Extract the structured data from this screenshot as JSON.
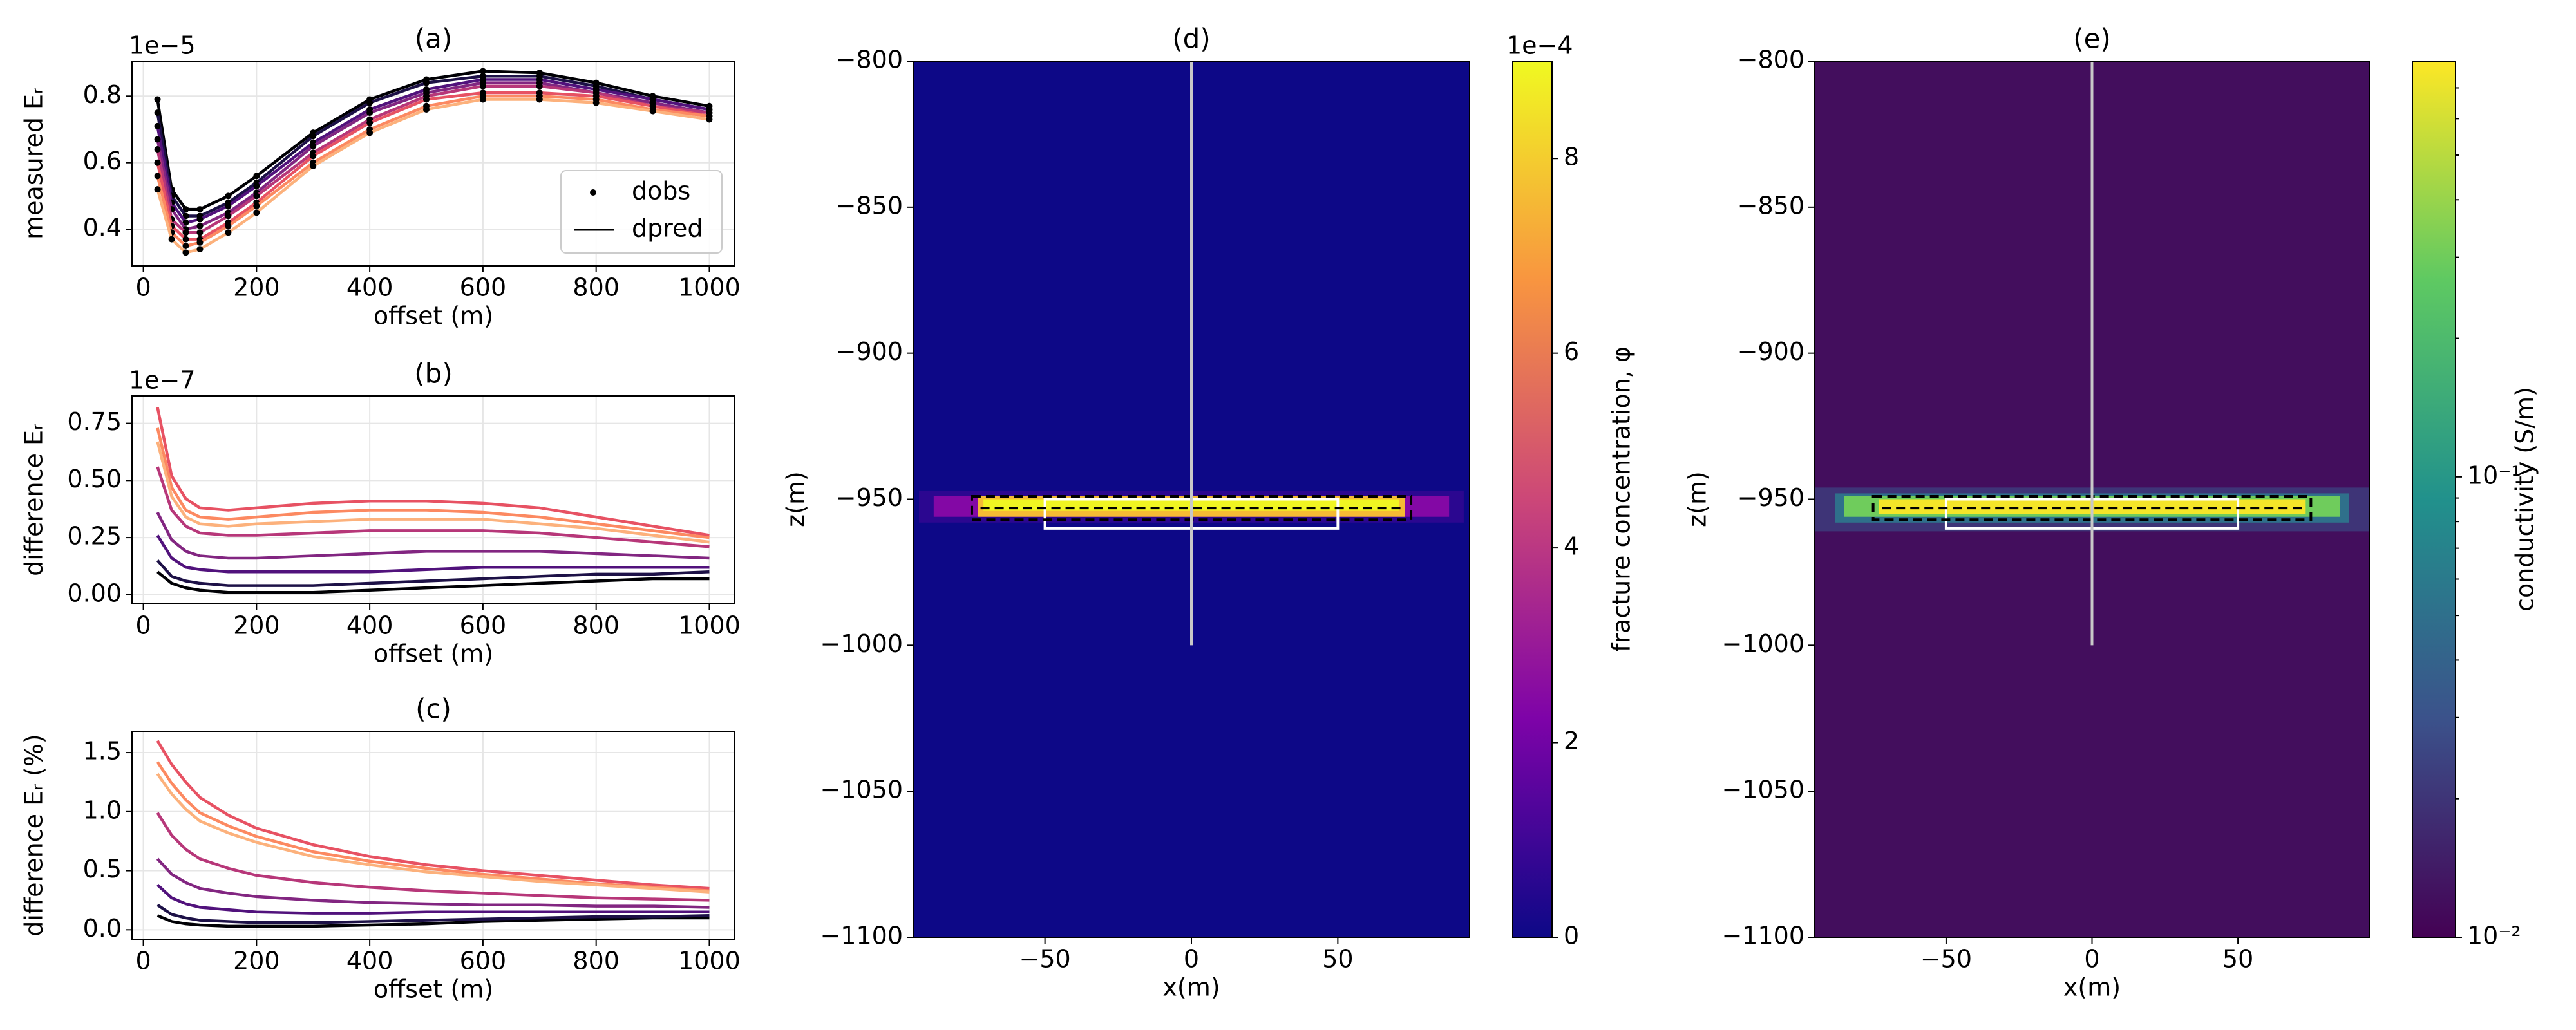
{
  "chart_data": [
    {
      "type": "line",
      "title": "(a)",
      "xlabel": "offset (m)",
      "ylabel": "measured Eᵣ",
      "offset_text": "1e−5",
      "x": [
        25,
        50,
        75,
        100,
        150,
        200,
        300,
        400,
        500,
        600,
        700,
        800,
        900,
        1000
      ],
      "xlim": [
        -20,
        1045
      ],
      "xticks": [
        0,
        200,
        400,
        600,
        800,
        1000
      ],
      "ylim": [
        0.29,
        0.905
      ],
      "yticks": [
        0.4,
        0.6,
        0.8
      ],
      "grid": true,
      "markers": true,
      "legend": {
        "loc": "lower right",
        "entries": [
          {
            "label": "dobs",
            "marker": "dot"
          },
          {
            "label": "dpred",
            "marker": "line"
          }
        ]
      },
      "series": [
        {
          "color": "#000004",
          "values": [
            0.79,
            0.52,
            0.46,
            0.46,
            0.5,
            0.56,
            0.69,
            0.79,
            0.85,
            0.875,
            0.87,
            0.84,
            0.8,
            0.77
          ]
        },
        {
          "color": "#1d1147",
          "values": [
            0.75,
            0.5,
            0.44,
            0.44,
            0.48,
            0.54,
            0.68,
            0.78,
            0.84,
            0.86,
            0.86,
            0.83,
            0.79,
            0.76
          ]
        },
        {
          "color": "#51127c",
          "values": [
            0.71,
            0.48,
            0.42,
            0.43,
            0.47,
            0.53,
            0.66,
            0.76,
            0.82,
            0.85,
            0.85,
            0.82,
            0.79,
            0.76
          ]
        },
        {
          "color": "#822681",
          "values": [
            0.67,
            0.46,
            0.4,
            0.41,
            0.45,
            0.51,
            0.65,
            0.75,
            0.81,
            0.84,
            0.84,
            0.81,
            0.78,
            0.75
          ]
        },
        {
          "color": "#b73779",
          "values": [
            0.64,
            0.43,
            0.39,
            0.39,
            0.44,
            0.5,
            0.63,
            0.73,
            0.8,
            0.83,
            0.83,
            0.81,
            0.77,
            0.75
          ]
        },
        {
          "color": "#e75263",
          "values": [
            0.6,
            0.41,
            0.37,
            0.37,
            0.42,
            0.48,
            0.62,
            0.72,
            0.79,
            0.81,
            0.81,
            0.8,
            0.77,
            0.74
          ]
        },
        {
          "color": "#fc8961",
          "values": [
            0.56,
            0.39,
            0.35,
            0.36,
            0.41,
            0.47,
            0.6,
            0.7,
            0.77,
            0.8,
            0.8,
            0.79,
            0.76,
            0.74
          ]
        },
        {
          "color": "#fcb17c",
          "values": [
            0.52,
            0.37,
            0.33,
            0.34,
            0.39,
            0.45,
            0.59,
            0.69,
            0.76,
            0.79,
            0.79,
            0.78,
            0.755,
            0.73
          ]
        }
      ]
    },
    {
      "type": "line",
      "title": "(b)",
      "xlabel": "offset (m)",
      "ylabel": "difference Eᵣ",
      "offset_text": "1e−7",
      "x": [
        25,
        50,
        75,
        100,
        150,
        200,
        300,
        400,
        500,
        600,
        700,
        800,
        900,
        1000
      ],
      "xlim": [
        -20,
        1045
      ],
      "xticks": [
        0,
        200,
        400,
        600,
        800,
        1000
      ],
      "ylim": [
        -0.04,
        0.87
      ],
      "yticks": [
        {
          "value": 0,
          "label": "0.00"
        },
        {
          "value": 0.25,
          "label": "0.25"
        },
        {
          "value": 0.5,
          "label": "0.50"
        },
        {
          "value": 0.75,
          "label": "0.75"
        }
      ],
      "grid": true,
      "series": [
        {
          "color": "#000004",
          "values": [
            0.1,
            0.05,
            0.03,
            0.02,
            0.01,
            0.01,
            0.01,
            0.02,
            0.03,
            0.04,
            0.05,
            0.06,
            0.07,
            0.07
          ]
        },
        {
          "color": "#1d1147",
          "values": [
            0.15,
            0.08,
            0.06,
            0.05,
            0.04,
            0.04,
            0.04,
            0.05,
            0.06,
            0.07,
            0.08,
            0.09,
            0.09,
            0.1
          ]
        },
        {
          "color": "#51127c",
          "values": [
            0.26,
            0.16,
            0.12,
            0.11,
            0.1,
            0.1,
            0.1,
            0.1,
            0.11,
            0.12,
            0.12,
            0.12,
            0.12,
            0.12
          ]
        },
        {
          "color": "#822681",
          "values": [
            0.36,
            0.24,
            0.19,
            0.17,
            0.16,
            0.16,
            0.17,
            0.18,
            0.19,
            0.19,
            0.19,
            0.18,
            0.17,
            0.16
          ]
        },
        {
          "color": "#b73779",
          "values": [
            0.56,
            0.37,
            0.3,
            0.27,
            0.26,
            0.26,
            0.27,
            0.28,
            0.28,
            0.28,
            0.27,
            0.25,
            0.23,
            0.21
          ]
        },
        {
          "color": "#e75263",
          "values": [
            0.82,
            0.52,
            0.42,
            0.38,
            0.37,
            0.38,
            0.4,
            0.41,
            0.41,
            0.4,
            0.38,
            0.34,
            0.3,
            0.26
          ]
        },
        {
          "color": "#fc8961",
          "values": [
            0.73,
            0.47,
            0.37,
            0.34,
            0.33,
            0.34,
            0.36,
            0.37,
            0.37,
            0.36,
            0.34,
            0.31,
            0.28,
            0.25
          ]
        },
        {
          "color": "#fcb17c",
          "values": [
            0.67,
            0.43,
            0.34,
            0.31,
            0.3,
            0.31,
            0.32,
            0.33,
            0.33,
            0.33,
            0.31,
            0.29,
            0.26,
            0.23
          ]
        }
      ]
    },
    {
      "type": "line",
      "title": "(c)",
      "xlabel": "offset (m)",
      "ylabel": "difference Eᵣ (%)",
      "x": [
        25,
        50,
        75,
        100,
        150,
        200,
        300,
        400,
        500,
        600,
        700,
        800,
        900,
        1000
      ],
      "xlim": [
        -20,
        1045
      ],
      "xticks": [
        0,
        200,
        400,
        600,
        800,
        1000
      ],
      "ylim": [
        -0.08,
        1.68
      ],
      "yticks": [
        {
          "value": 0,
          "label": "0.0"
        },
        {
          "value": 0.5,
          "label": "0.5"
        },
        {
          "value": 1,
          "label": "1.0"
        },
        {
          "value": 1.5,
          "label": "1.5"
        }
      ],
      "grid": true,
      "series": [
        {
          "color": "#000004",
          "values": [
            0.12,
            0.07,
            0.05,
            0.04,
            0.03,
            0.03,
            0.03,
            0.04,
            0.05,
            0.07,
            0.08,
            0.09,
            0.1,
            0.1
          ]
        },
        {
          "color": "#1d1147",
          "values": [
            0.21,
            0.13,
            0.1,
            0.08,
            0.07,
            0.06,
            0.06,
            0.07,
            0.08,
            0.09,
            0.1,
            0.11,
            0.11,
            0.12
          ]
        },
        {
          "color": "#51127c",
          "values": [
            0.38,
            0.27,
            0.22,
            0.19,
            0.17,
            0.15,
            0.14,
            0.14,
            0.15,
            0.15,
            0.15,
            0.15,
            0.15,
            0.15
          ]
        },
        {
          "color": "#822681",
          "values": [
            0.6,
            0.47,
            0.4,
            0.35,
            0.31,
            0.28,
            0.25,
            0.23,
            0.22,
            0.21,
            0.21,
            0.2,
            0.2,
            0.19
          ]
        },
        {
          "color": "#b73779",
          "values": [
            0.99,
            0.8,
            0.68,
            0.6,
            0.52,
            0.46,
            0.4,
            0.36,
            0.33,
            0.31,
            0.29,
            0.27,
            0.26,
            0.25
          ]
        },
        {
          "color": "#e75263",
          "values": [
            1.6,
            1.4,
            1.25,
            1.12,
            0.97,
            0.86,
            0.72,
            0.62,
            0.55,
            0.5,
            0.46,
            0.42,
            0.38,
            0.35
          ]
        },
        {
          "color": "#fc8961",
          "values": [
            1.42,
            1.24,
            1.1,
            0.99,
            0.88,
            0.79,
            0.66,
            0.58,
            0.52,
            0.47,
            0.43,
            0.39,
            0.36,
            0.33
          ]
        },
        {
          "color": "#fcb17c",
          "values": [
            1.32,
            1.15,
            1.02,
            0.92,
            0.82,
            0.74,
            0.62,
            0.55,
            0.49,
            0.45,
            0.41,
            0.38,
            0.35,
            0.32
          ]
        }
      ]
    },
    {
      "type": "image",
      "title": "(d)",
      "xlabel": "x(m)",
      "ylabel": "z(m)",
      "xlim": [
        -95,
        95
      ],
      "xticks": [
        {
          "value": -50,
          "label": "−50"
        },
        0,
        50
      ],
      "ylim": [
        -1100,
        -800
      ],
      "yticks": [
        {
          "value": -800,
          "label": "−800"
        },
        {
          "value": -850,
          "label": "−850"
        },
        {
          "value": -900,
          "label": "−900"
        },
        {
          "value": -950,
          "label": "−950"
        },
        {
          "value": -1000,
          "label": "−1000"
        },
        {
          "value": -1050,
          "label": "−1050"
        },
        {
          "value": -1100,
          "label": "−1100"
        }
      ],
      "background": 0,
      "cells": [
        {
          "x": [
            -93,
            93
          ],
          "z": [
            -947,
            -958
          ],
          "value": 0.6
        },
        {
          "x": [
            -88,
            88
          ],
          "z": [
            -949,
            -956
          ],
          "value": 2.4
        },
        {
          "x": [
            -73,
            73
          ],
          "z": [
            -949,
            -956
          ],
          "value": 7.6
        },
        {
          "x": [
            -71,
            71
          ],
          "z": [
            -950,
            -954
          ],
          "value": 8.9
        }
      ],
      "overlays": [
        {
          "shape": "rect",
          "x": [
            -50,
            50
          ],
          "z": [
            -950,
            -960
          ],
          "color": "#ffffff",
          "dash": false
        },
        {
          "shape": "rect",
          "x": [
            -75,
            75
          ],
          "z": [
            -949,
            -957
          ],
          "color": "#000000",
          "dash": true
        },
        {
          "shape": "line",
          "x": [
            -72,
            72
          ],
          "z": [
            -953,
            -953
          ],
          "color": "#000000",
          "dash": true
        },
        {
          "shape": "line",
          "x": [
            0,
            0
          ],
          "z": [
            -800,
            -1000
          ],
          "color": "#c8c8c8",
          "dash": false
        }
      ],
      "colorbar": {
        "label": "fracture concentration, φ",
        "colormap": "plasma",
        "scale": "linear",
        "lim": [
          0,
          9
        ],
        "ticks": [
          0,
          2,
          4,
          6,
          8
        ],
        "offset_text": "1e−4"
      }
    },
    {
      "type": "image",
      "title": "(e)",
      "xlabel": "x(m)",
      "ylabel": "z(m)",
      "xlim": [
        -95,
        95
      ],
      "xticks": [
        {
          "value": -50,
          "label": "−50"
        },
        0,
        50
      ],
      "ylim": [
        -1100,
        -800
      ],
      "yticks": [
        {
          "value": -800,
          "label": "−800"
        },
        {
          "value": -850,
          "label": "−850"
        },
        {
          "value": -900,
          "label": "−900"
        },
        {
          "value": -950,
          "label": "−950"
        },
        {
          "value": -1000,
          "label": "−1000"
        },
        {
          "value": -1050,
          "label": "−1050"
        },
        {
          "value": -1100,
          "label": "−1100"
        }
      ],
      "background": 0.012,
      "cells": [
        {
          "x": [
            -95,
            95
          ],
          "z": [
            -946,
            -961
          ],
          "value": 0.02
        },
        {
          "x": [
            -88,
            88
          ],
          "z": [
            -948,
            -958
          ],
          "value": 0.05
        },
        {
          "x": [
            -85,
            85
          ],
          "z": [
            -949,
            -956
          ],
          "value": 0.3
        },
        {
          "x": [
            -73,
            73
          ],
          "z": [
            -950,
            -955
          ],
          "value": 0.75
        }
      ],
      "overlays": [
        {
          "shape": "rect",
          "x": [
            -50,
            50
          ],
          "z": [
            -950,
            -960
          ],
          "color": "#ffffff",
          "dash": false
        },
        {
          "shape": "rect",
          "x": [
            -75,
            75
          ],
          "z": [
            -949,
            -957
          ],
          "color": "#000000",
          "dash": true
        },
        {
          "shape": "line",
          "x": [
            -72,
            72
          ],
          "z": [
            -953,
            -953
          ],
          "color": "#000000",
          "dash": true
        },
        {
          "shape": "line",
          "x": [
            0,
            0
          ],
          "z": [
            -800,
            -1000
          ],
          "color": "#c8c8c8",
          "dash": false
        }
      ],
      "colorbar": {
        "label": "conductivity (S/m)",
        "colormap": "viridis",
        "scale": "log",
        "lim": [
          0.01,
          0.8
        ],
        "ticks": [
          {
            "value": 0.01,
            "label": "10⁻²"
          },
          {
            "value": 0.1,
            "label": "10⁻¹"
          }
        ],
        "minor_ticks": [
          0.02,
          0.03,
          0.04,
          0.05,
          0.06,
          0.07,
          0.08,
          0.09,
          0.2,
          0.3,
          0.4,
          0.5,
          0.6,
          0.7
        ]
      }
    }
  ]
}
